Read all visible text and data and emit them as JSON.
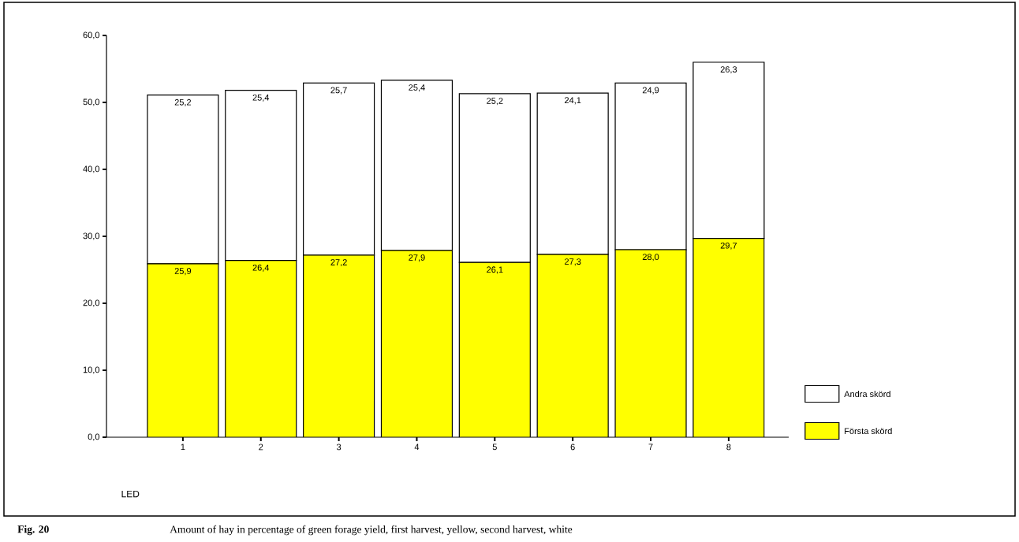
{
  "chart_data": {
    "type": "bar",
    "stacked": true,
    "xlabel": "LED",
    "categories": [
      "1",
      "2",
      "3",
      "4",
      "5",
      "6",
      "7",
      "8"
    ],
    "series": [
      {
        "name": "Första skörd",
        "color": "#ffff00",
        "values": [
          25.9,
          26.4,
          27.2,
          27.9,
          26.1,
          27.3,
          28.0,
          29.7
        ],
        "value_labels": [
          "25,9",
          "26,4",
          "27,2",
          "27,9",
          "26,1",
          "27,3",
          "28,0",
          "29,7"
        ]
      },
      {
        "name": "Andra skörd",
        "color": "#ffffff",
        "values": [
          25.2,
          25.4,
          25.7,
          25.4,
          25.2,
          24.1,
          24.9,
          26.3
        ],
        "value_labels": [
          "25,2",
          "25,4",
          "25,7",
          "25,4",
          "25,2",
          "24,1",
          "24,9",
          "26,3"
        ]
      }
    ],
    "ylim": [
      0,
      60
    ],
    "yticks": [
      {
        "value": 0,
        "label": "0,0"
      },
      {
        "value": 10,
        "label": "10,0"
      },
      {
        "value": 20,
        "label": "20,0"
      },
      {
        "value": 30,
        "label": "30,0"
      },
      {
        "value": 40,
        "label": "40,0"
      },
      {
        "value": 50,
        "label": "50,0"
      },
      {
        "value": 60,
        "label": "60,0"
      }
    ],
    "grid": false,
    "legend": "right",
    "annotations": [
      "Fig. 20",
      "Amount of hay in percentage of green forage yield, first harvest, yellow, second harvest, white"
    ]
  }
}
